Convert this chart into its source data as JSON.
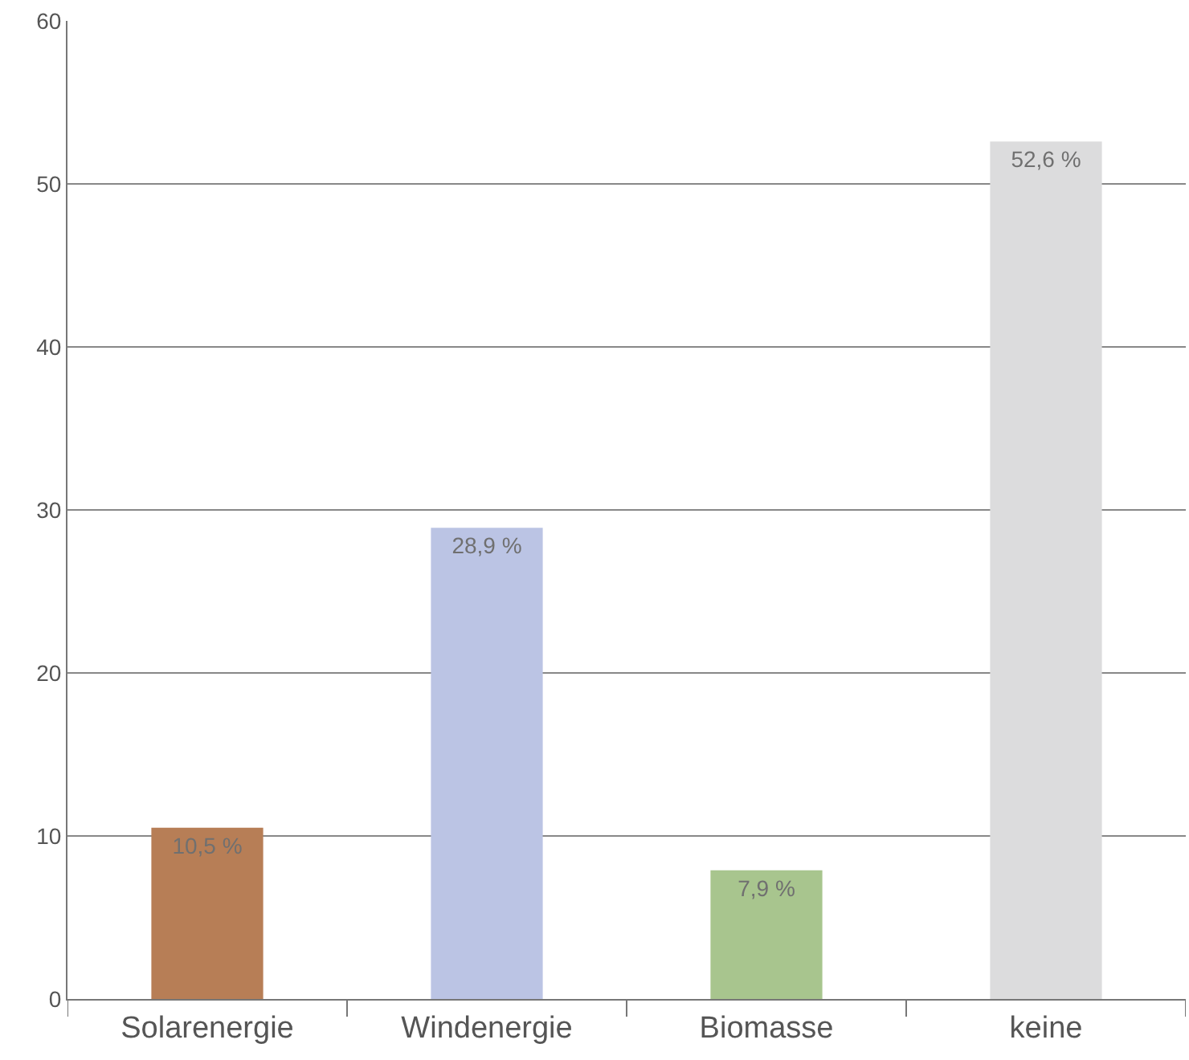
{
  "chart_data": {
    "type": "bar",
    "categories": [
      "Solarenergie",
      "Windenergie",
      "Biomasse",
      "keine"
    ],
    "values": [
      10.5,
      28.9,
      7.9,
      52.6
    ],
    "colors": [
      "#b77e56",
      "#bbc4e4",
      "#a8c58e",
      "#dcdcdd"
    ],
    "value_labels": [
      "10,5 %",
      "28,9 %",
      "7,9 %",
      "52,6 %"
    ],
    "ylim": [
      0,
      60
    ],
    "yticks": [
      0,
      10,
      20,
      30,
      40,
      50,
      60
    ],
    "grid": "y",
    "legend": false
  }
}
